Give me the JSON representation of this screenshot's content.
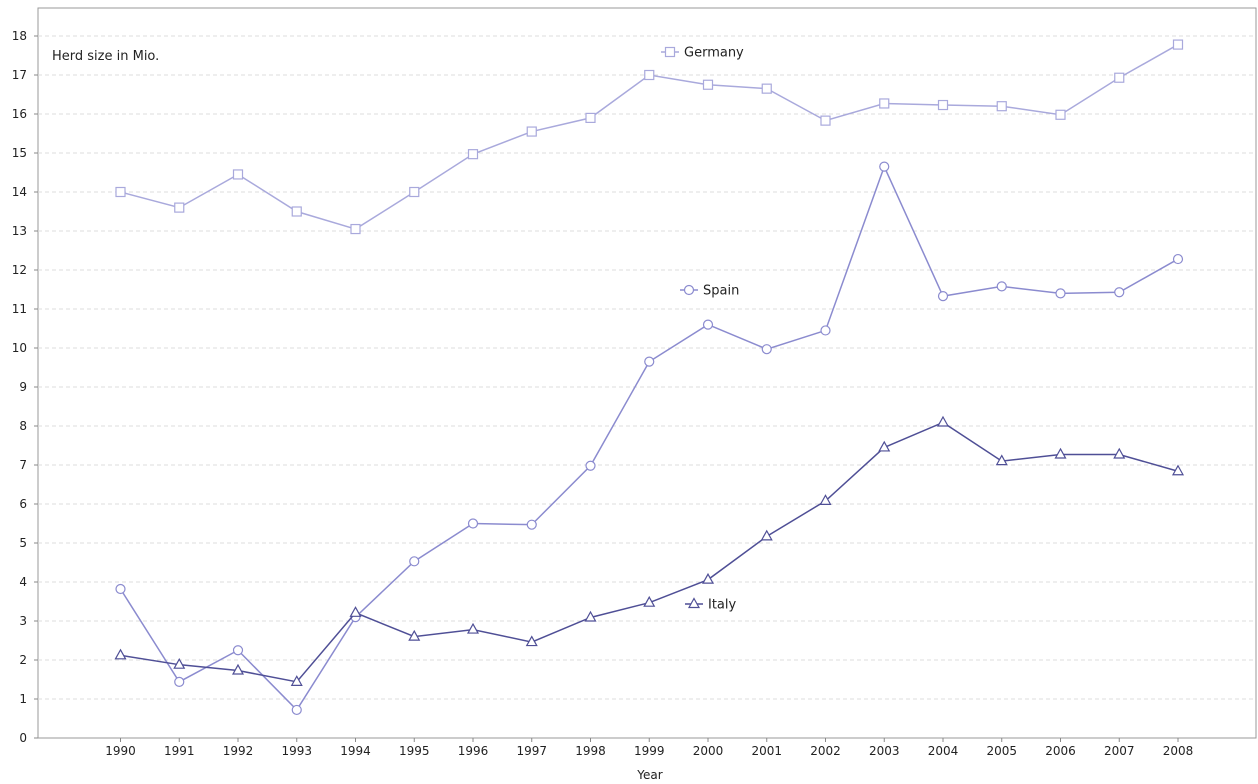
{
  "chart_data": {
    "type": "line",
    "title": "",
    "unit_label": "Herd size in Mio.",
    "xlabel": "Year",
    "ylabel": "",
    "ylim": [
      0,
      18
    ],
    "y_ticks": [
      "0",
      "1",
      "2",
      "3",
      "4",
      "5",
      "6",
      "7",
      "8",
      "9",
      "10",
      "11",
      "12",
      "13",
      "14",
      "15",
      "16",
      "17",
      "18"
    ],
    "categories": [
      "1990",
      "1991",
      "1992",
      "1993",
      "1994",
      "1995",
      "1996",
      "1997",
      "1998",
      "1999",
      "2000",
      "2001",
      "2002",
      "2003",
      "2004",
      "2005",
      "2006",
      "2007",
      "2008"
    ],
    "grid": "horizontal dashed",
    "series": [
      {
        "name": "Germany",
        "marker": "square",
        "color": "#a9a9dc",
        "values": [
          14.0,
          13.6,
          14.45,
          13.5,
          13.05,
          14.0,
          14.97,
          15.55,
          15.9,
          17.0,
          16.75,
          16.65,
          15.83,
          16.27,
          16.23,
          16.2,
          15.98,
          16.93,
          17.78
        ]
      },
      {
        "name": "Spain",
        "marker": "circle",
        "color": "#8b8bcf",
        "values": [
          3.82,
          1.44,
          2.25,
          0.72,
          3.1,
          4.53,
          5.5,
          5.47,
          6.98,
          9.65,
          10.6,
          9.97,
          10.45,
          14.65,
          11.33,
          11.58,
          11.4,
          11.43,
          12.28
        ]
      },
      {
        "name": "Italy",
        "marker": "triangle",
        "color": "#4f4f96",
        "values": [
          2.12,
          1.88,
          1.73,
          1.44,
          3.21,
          2.6,
          2.78,
          2.46,
          3.09,
          3.47,
          4.06,
          5.17,
          6.08,
          7.45,
          8.09,
          7.1,
          7.27,
          7.27,
          6.84
        ]
      }
    ]
  }
}
